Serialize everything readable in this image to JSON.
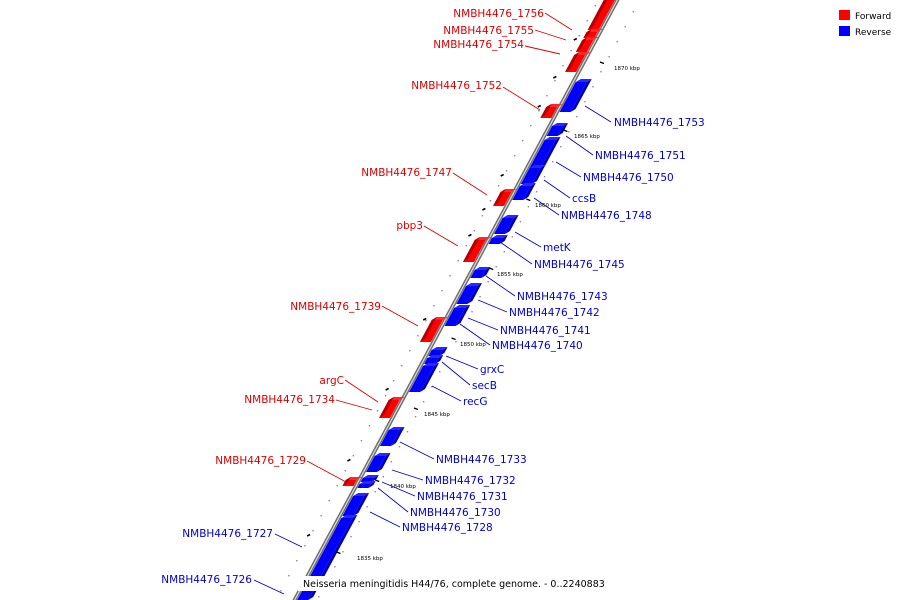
{
  "legend": {
    "forward_label": "Forward",
    "reverse_label": "Reverse",
    "forward_color": "#ff0000",
    "reverse_color": "#0000ff"
  },
  "caption": "Neisseria meningitidis H44/76, complete genome. - 0..2240883",
  "ticks": [
    "1870 kbp",
    "1865 kbp",
    "1860 kbp",
    "1855 kbp",
    "1850 kbp",
    "1845 kbp",
    "1840 kbp",
    "1835 kbp"
  ],
  "genes": {
    "forward": [
      "NMBH4476_1756",
      "NMBH4476_1755",
      "NMBH4476_1754",
      "NMBH4476_1752",
      "NMBH4476_1747",
      "pbp3",
      "NMBH4476_1739",
      "argC",
      "NMBH4476_1734",
      "NMBH4476_1729"
    ],
    "reverse": [
      "NMBH4476_1753",
      "NMBH4476_1751",
      "NMBH4476_1750",
      "ccsB",
      "NMBH4476_1748",
      "metK",
      "NMBH4476_1745",
      "NMBH4476_1743",
      "NMBH4476_1742",
      "NMBH4476_1741",
      "NMBH4476_1740",
      "grxC",
      "secB",
      "recG",
      "NMBH4476_1733",
      "NMBH4476_1732",
      "NMBH4476_1731",
      "NMBH4476_1730",
      "NMBH4476_1728",
      "NMBH4476_1727",
      "NMBH4476_1726"
    ]
  }
}
